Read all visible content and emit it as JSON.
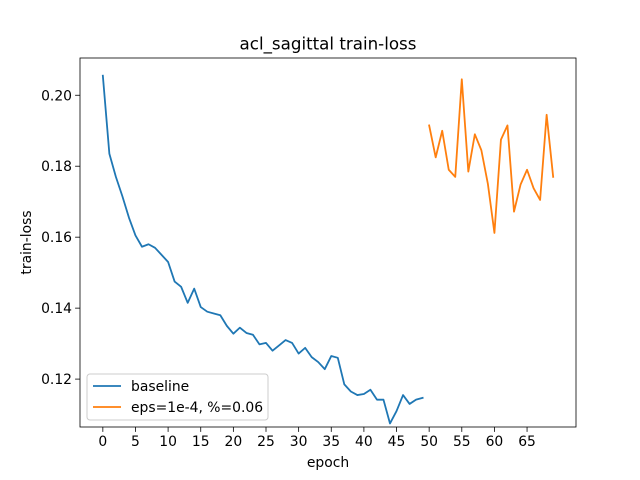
{
  "chart_data": {
    "type": "line",
    "title": "acl_sagittal train-loss",
    "xlabel": "epoch",
    "ylabel": "train-loss",
    "xlim": [
      -3.5,
      72.5
    ],
    "ylim": [
      0.1065,
      0.2105
    ],
    "xticks": [
      0,
      5,
      10,
      15,
      20,
      25,
      30,
      35,
      40,
      45,
      50,
      55,
      60,
      65
    ],
    "yticks": [
      0.12,
      0.14,
      0.16,
      0.18,
      0.2
    ],
    "ytick_labels": [
      "0.12",
      "0.14",
      "0.16",
      "0.18",
      "0.20"
    ],
    "grid": false,
    "legend_position": "lower-left",
    "series": [
      {
        "name": "baseline",
        "color": "#1f77b4",
        "x": [
          0,
          1,
          2,
          3,
          4,
          5,
          6,
          7,
          8,
          9,
          10,
          11,
          12,
          13,
          14,
          15,
          16,
          17,
          18,
          19,
          20,
          21,
          22,
          23,
          24,
          25,
          26,
          27,
          28,
          29,
          30,
          31,
          32,
          33,
          34,
          35,
          36,
          37,
          38,
          39,
          40,
          41,
          42,
          43,
          44,
          45,
          46,
          47,
          48,
          49
        ],
        "y": [
          0.2055,
          0.1835,
          0.177,
          0.1715,
          0.1655,
          0.1605,
          0.1573,
          0.158,
          0.157,
          0.155,
          0.153,
          0.1475,
          0.146,
          0.1415,
          0.1455,
          0.1403,
          0.139,
          0.1385,
          0.138,
          0.135,
          0.1328,
          0.1345,
          0.133,
          0.1325,
          0.1298,
          0.1302,
          0.128,
          0.1295,
          0.131,
          0.1302,
          0.1272,
          0.1288,
          0.1262,
          0.1248,
          0.1228,
          0.1265,
          0.126,
          0.1185,
          0.1165,
          0.1155,
          0.1158,
          0.117,
          0.1142,
          0.1142,
          0.1075,
          0.111,
          0.1155,
          0.113,
          0.1142,
          0.1147
        ]
      },
      {
        "name": "eps=1e-4, %=0.06",
        "color": "#ff7f0e",
        "x": [
          50,
          51,
          52,
          53,
          54,
          55,
          56,
          57,
          58,
          59,
          60,
          61,
          62,
          63,
          64,
          65,
          66,
          67,
          68,
          69
        ],
        "y": [
          0.1915,
          0.1825,
          0.19,
          0.179,
          0.177,
          0.2045,
          0.1785,
          0.189,
          0.1845,
          0.175,
          0.1612,
          0.1875,
          0.1915,
          0.1672,
          0.1748,
          0.179,
          0.1738,
          0.1705,
          0.1945,
          0.177
        ]
      }
    ]
  }
}
